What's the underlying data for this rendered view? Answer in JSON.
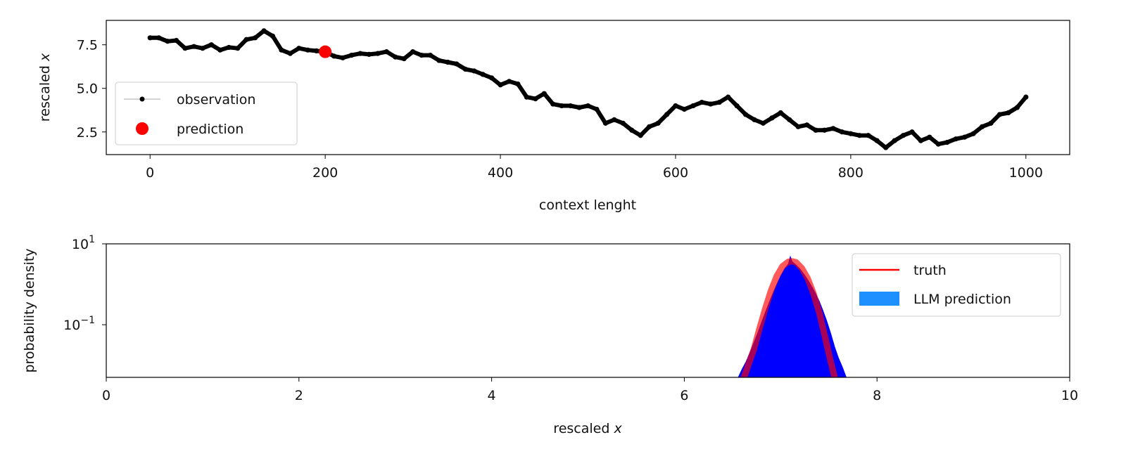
{
  "chart_data": [
    {
      "type": "line",
      "xlabel": "context lenght",
      "ylabel_text": "rescaled",
      "ylabel_var": "x",
      "xlim": [
        -50,
        1050
      ],
      "ylim": [
        1.2,
        8.9
      ],
      "xticks": [
        0,
        200,
        400,
        600,
        800,
        1000
      ],
      "xtick_labels": [
        "0",
        "200",
        "400",
        "600",
        "800",
        "1000"
      ],
      "yticks": [
        2.5,
        5.0,
        7.5
      ],
      "ytick_labels": [
        "2.5",
        "5.0",
        "7.5"
      ],
      "legend_position": "lower-left",
      "series": [
        {
          "name": "observation",
          "color": "#000000",
          "x": [
            0,
            10,
            20,
            30,
            40,
            50,
            60,
            70,
            80,
            90,
            100,
            110,
            120,
            130,
            140,
            150,
            160,
            170,
            180,
            190,
            200,
            210,
            220,
            230,
            240,
            250,
            260,
            270,
            280,
            290,
            300,
            310,
            320,
            330,
            340,
            350,
            360,
            370,
            380,
            390,
            400,
            410,
            420,
            430,
            440,
            450,
            460,
            470,
            480,
            490,
            500,
            510,
            520,
            530,
            540,
            550,
            560,
            570,
            580,
            590,
            600,
            610,
            620,
            630,
            640,
            650,
            660,
            670,
            680,
            690,
            700,
            710,
            720,
            730,
            740,
            750,
            760,
            770,
            780,
            790,
            800,
            810,
            820,
            830,
            840,
            850,
            860,
            870,
            880,
            890,
            900,
            910,
            920,
            930,
            940,
            950,
            960,
            970,
            980,
            990,
            1000
          ],
          "y": [
            7.9,
            7.9,
            7.7,
            7.75,
            7.3,
            7.4,
            7.3,
            7.5,
            7.2,
            7.35,
            7.3,
            7.8,
            7.9,
            8.3,
            8.0,
            7.2,
            7.0,
            7.3,
            7.2,
            7.15,
            7.1,
            6.85,
            6.75,
            6.9,
            7.0,
            6.95,
            7.0,
            7.1,
            6.8,
            6.7,
            7.1,
            6.9,
            6.9,
            6.6,
            6.5,
            6.4,
            6.1,
            6.0,
            5.8,
            5.6,
            5.2,
            5.4,
            5.25,
            4.5,
            4.4,
            4.7,
            4.1,
            4.0,
            4.0,
            3.9,
            4.0,
            3.8,
            3.0,
            3.2,
            3.0,
            2.6,
            2.3,
            2.8,
            3.0,
            3.5,
            4.0,
            3.8,
            4.0,
            4.2,
            4.1,
            4.2,
            4.5,
            4.0,
            3.5,
            3.2,
            3.0,
            3.3,
            3.6,
            3.2,
            2.8,
            2.9,
            2.6,
            2.6,
            2.7,
            2.5,
            2.4,
            2.3,
            2.3,
            2.0,
            1.6,
            2.0,
            2.3,
            2.5,
            2.0,
            2.2,
            1.8,
            1.9,
            2.1,
            2.2,
            2.4,
            2.8,
            3.0,
            3.5,
            3.6,
            3.9,
            4.5
          ]
        },
        {
          "name": "prediction",
          "color": "#ff0000",
          "x": [
            200
          ],
          "y": [
            7.1
          ]
        }
      ]
    },
    {
      "type": "area",
      "xlabel_text": "rescaled",
      "xlabel_var": "x",
      "ylabel": "probability density",
      "xlim": [
        0,
        10
      ],
      "ylim": [
        0.005,
        10
      ],
      "yscale": "log",
      "xticks": [
        0,
        2,
        4,
        6,
        8,
        10
      ],
      "xtick_labels": [
        "0",
        "2",
        "4",
        "6",
        "8",
        "10"
      ],
      "yticks": [
        0.1,
        10
      ],
      "ytick_labels": [
        {
          "base": "10",
          "exp": "−1"
        },
        {
          "base": "10",
          "exp": "1"
        }
      ],
      "legend_position": "upper-right",
      "series": [
        {
          "name": "truth",
          "color": "#ff0000",
          "x": [
            6.62,
            6.68,
            6.72,
            6.78,
            6.84,
            6.9,
            6.96,
            7.02,
            7.08,
            7.12,
            7.16,
            7.22,
            7.28,
            7.34,
            7.4,
            7.46,
            7.52,
            7.56
          ],
          "y": [
            0.005,
            0.013,
            0.024,
            0.08,
            0.25,
            0.7,
            1.6,
            2.8,
            3.6,
            3.7,
            3.5,
            2.5,
            1.4,
            0.6,
            0.2,
            0.05,
            0.012,
            0.005
          ]
        },
        {
          "name": "LLM prediction",
          "color": "#1e90ff",
          "x": [
            6.56,
            6.6,
            6.64,
            6.68,
            6.72,
            6.76,
            6.8,
            6.84,
            6.88,
            6.92,
            6.96,
            7.0,
            7.04,
            7.08,
            7.1,
            7.12,
            7.16,
            7.2,
            7.24,
            7.28,
            7.32,
            7.36,
            7.4,
            7.44,
            7.48,
            7.52,
            7.56,
            7.6,
            7.64,
            7.68
          ],
          "y": [
            0.005,
            0.008,
            0.012,
            0.02,
            0.035,
            0.06,
            0.11,
            0.2,
            0.35,
            0.6,
            1.0,
            1.6,
            2.4,
            3.2,
            4.8,
            3.6,
            3.0,
            2.4,
            1.8,
            1.3,
            0.9,
            0.6,
            0.38,
            0.22,
            0.12,
            0.06,
            0.028,
            0.015,
            0.009,
            0.005
          ]
        }
      ]
    }
  ]
}
